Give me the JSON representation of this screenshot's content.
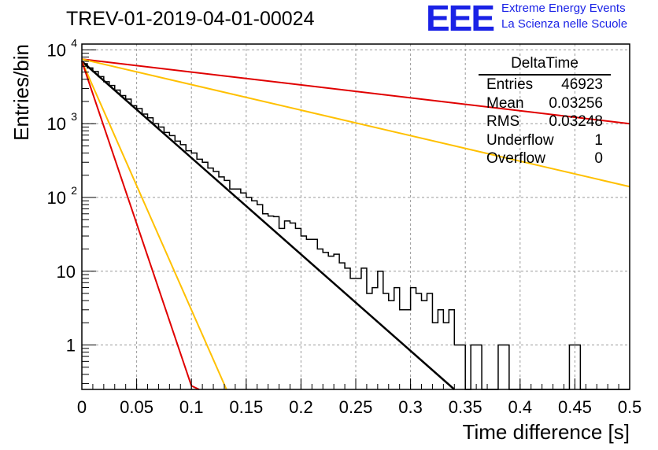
{
  "header": {
    "title": "TREV-01-2019-04-01-00024"
  },
  "logo": {
    "mark": "EEE",
    "line1": "Extreme Energy Events",
    "line2": "La Scienza nelle Scuole"
  },
  "stats": {
    "name": "DeltaTime",
    "rows": [
      {
        "label": "Entries",
        "value": "46923"
      },
      {
        "label": "Mean",
        "value": "0.03256"
      },
      {
        "label": "RMS",
        "value": "0.03248"
      },
      {
        "label": "Underflow",
        "value": "1"
      },
      {
        "label": "Overflow",
        "value": "0"
      }
    ]
  },
  "colors": {
    "histogram": "#000000",
    "fit": "#000000",
    "red_curve": "#e00000",
    "orange_curve": "#ffc000",
    "grid": "#9a9a9a"
  },
  "chart_data": {
    "type": "line",
    "xlabel": "Time difference [s]",
    "ylabel": "Entries/bin",
    "xlim": [
      0,
      0.5
    ],
    "ylim": [
      0.25,
      12000
    ],
    "yscale": "log",
    "grid": true,
    "legend": "top-right",
    "x_ticks": [
      "0",
      "0.05",
      "0.1",
      "0.15",
      "0.2",
      "0.25",
      "0.3",
      "0.35",
      "0.4",
      "0.45",
      "0.5"
    ],
    "y_ticks": [
      {
        "value": 1,
        "label": "1"
      },
      {
        "value": 10,
        "label": "10"
      },
      {
        "value": 100,
        "label": "10",
        "exp": "2"
      },
      {
        "value": 1000,
        "label": "10",
        "exp": "3"
      },
      {
        "value": 10000,
        "label": "10",
        "exp": "4"
      }
    ],
    "histogram": {
      "name": "DeltaTime",
      "bin_width": 0.005,
      "contents": [
        6500,
        5700,
        5100,
        4350,
        3700,
        3300,
        2850,
        2400,
        2150,
        1750,
        1600,
        1350,
        1200,
        1000,
        900,
        760,
        690,
        580,
        520,
        430,
        400,
        330,
        300,
        250,
        225,
        190,
        170,
        130,
        130,
        115,
        100,
        90,
        80,
        60,
        56,
        55,
        38,
        48,
        45,
        38,
        30,
        27,
        27,
        20,
        18,
        16,
        17,
        13,
        11,
        8,
        8,
        11,
        5,
        6,
        10,
        5,
        4,
        6,
        3,
        3,
        6,
        5,
        4,
        5,
        2,
        3,
        2,
        3,
        1,
        1,
        0.2,
        1,
        1,
        0.2,
        0.2,
        0.2,
        1,
        1,
        0.2,
        0.2,
        0.2,
        0.2,
        0.2,
        0.2,
        0.2,
        0.2,
        0.2,
        0.2,
        0.2,
        1,
        1,
        0.2,
        0.2,
        0.2,
        0.2,
        0.2,
        0.2,
        0.2,
        0.2,
        0.2
      ]
    },
    "curves": [
      {
        "color": "red_curve",
        "points": [
          [
            0,
            7500
          ],
          [
            0.5,
            1000
          ]
        ]
      },
      {
        "color": "orange_curve",
        "points": [
          [
            0,
            7500
          ],
          [
            0.5,
            140
          ]
        ]
      },
      {
        "color": "fit",
        "points": [
          [
            0,
            7000
          ],
          [
            0.34,
            0.25
          ]
        ]
      },
      {
        "color": "orange_curve",
        "points": [
          [
            0,
            7000
          ],
          [
            0.132,
            0.25
          ]
        ]
      },
      {
        "color": "red_curve",
        "points": [
          [
            0,
            7000
          ],
          [
            0.1,
            0.28
          ],
          [
            0.107,
            0.25
          ]
        ]
      }
    ]
  }
}
